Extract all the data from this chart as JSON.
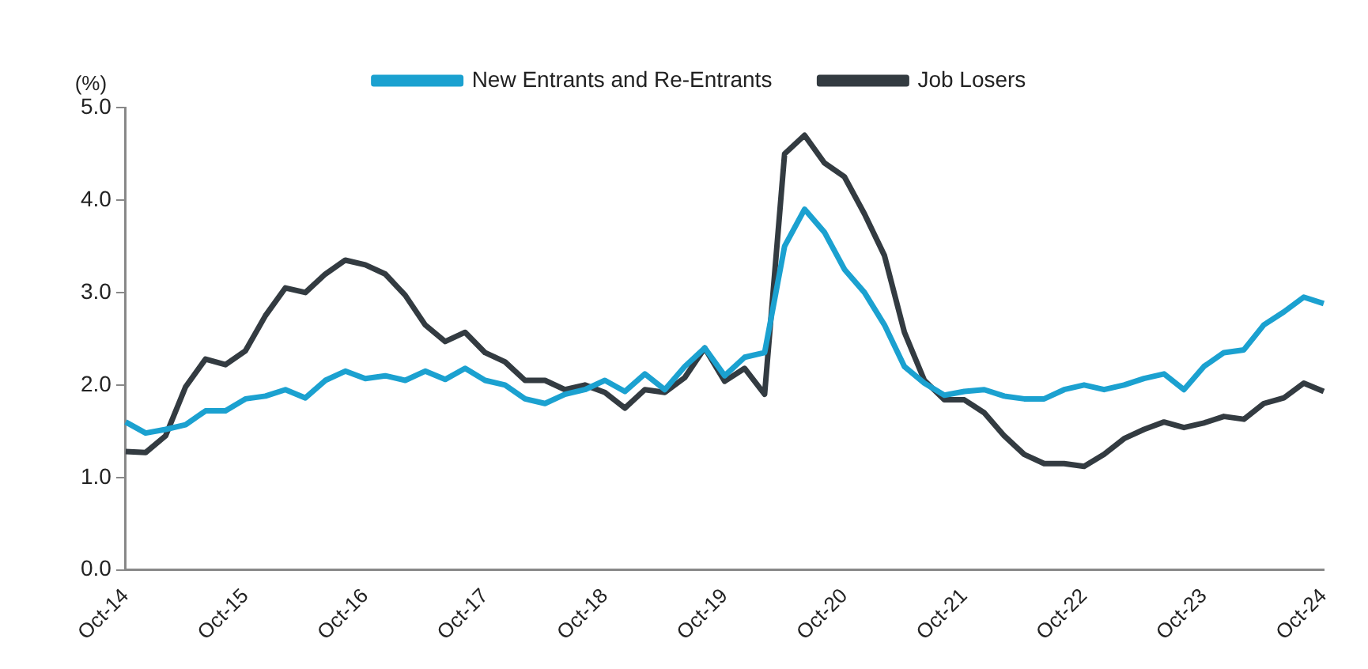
{
  "chart_data": {
    "type": "line",
    "ylabel": "(%)",
    "categories": [
      "Oct-14",
      null,
      null,
      null,
      null,
      null,
      "Oct-15",
      null,
      null,
      null,
      null,
      null,
      "Oct-16",
      null,
      null,
      null,
      null,
      null,
      "Oct-17",
      null,
      null,
      null,
      null,
      null,
      "Oct-18",
      null,
      null,
      null,
      null,
      null,
      "Oct-19",
      null,
      null,
      null,
      null,
      null,
      "Oct-20",
      null,
      null,
      null,
      null,
      null,
      "Oct-21",
      null,
      null,
      null,
      null,
      null,
      "Oct-22",
      null,
      null,
      null,
      null,
      null,
      "Oct-23",
      null,
      null,
      null,
      null,
      null,
      "Oct-24"
    ],
    "series": [
      {
        "name": "New Entrants and Re-Entrants",
        "color": "#1ba1d0",
        "values": [
          1.6,
          1.48,
          1.52,
          1.57,
          1.72,
          1.72,
          1.85,
          1.88,
          1.95,
          1.86,
          2.05,
          2.15,
          2.07,
          2.1,
          2.05,
          2.15,
          2.06,
          2.18,
          2.05,
          2.0,
          1.85,
          1.8,
          1.9,
          1.95,
          2.05,
          1.93,
          2.12,
          1.95,
          2.2,
          2.4,
          2.1,
          2.3,
          2.35,
          3.5,
          3.9,
          3.65,
          3.25,
          3.0,
          2.65,
          2.2,
          2.02,
          1.89,
          1.93,
          1.95,
          1.88,
          1.85,
          1.85,
          1.95,
          2.0,
          1.95,
          2.0,
          2.07,
          2.12,
          1.95,
          2.2,
          2.35,
          2.38,
          2.65,
          2.79,
          2.95,
          2.88
        ]
      },
      {
        "name": "Job Losers",
        "color": "#333b41",
        "values": [
          1.28,
          1.27,
          1.45,
          1.98,
          2.28,
          2.22,
          2.37,
          2.75,
          3.05,
          3.0,
          3.2,
          3.35,
          3.3,
          3.2,
          2.97,
          2.65,
          2.47,
          2.57,
          2.35,
          2.25,
          2.05,
          2.05,
          1.95,
          2.0,
          1.92,
          1.75,
          1.95,
          1.92,
          2.08,
          2.4,
          2.04,
          2.18,
          1.9,
          4.5,
          4.7,
          4.4,
          4.25,
          3.85,
          3.4,
          2.57,
          2.05,
          1.84,
          1.84,
          1.7,
          1.45,
          1.25,
          1.15,
          1.15,
          1.12,
          1.25,
          1.42,
          1.52,
          1.6,
          1.54,
          1.59,
          1.66,
          1.63,
          1.8,
          1.86,
          2.02,
          1.93
        ]
      }
    ],
    "ylim": [
      0,
      5
    ],
    "yticks": [
      {
        "value": 0,
        "label": "0.0"
      },
      {
        "value": 1,
        "label": "1.0"
      },
      {
        "value": 2,
        "label": "2.0"
      },
      {
        "value": 3,
        "label": "3.0"
      },
      {
        "value": 4,
        "label": "4.0"
      },
      {
        "value": 5,
        "label": "5.0"
      }
    ],
    "grid": false,
    "legend": "top",
    "marker": "none",
    "line_style": "solid"
  }
}
